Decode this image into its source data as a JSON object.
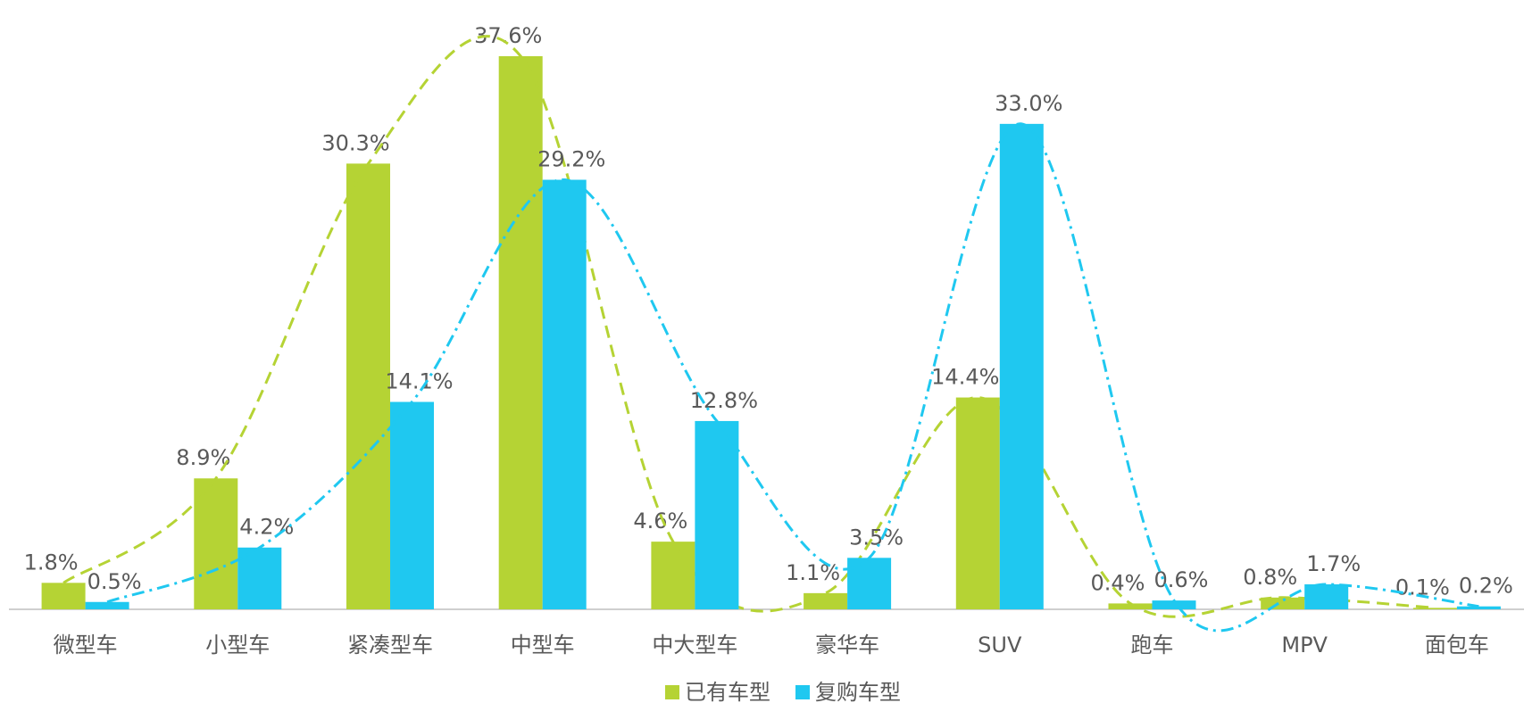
{
  "chart_data": {
    "type": "bar",
    "categories": [
      "微型车",
      "小型车",
      "紧凑型车",
      "中型车",
      "中大型车",
      "豪华车",
      "SUV",
      "跑车",
      "MPV",
      "面包车"
    ],
    "series": [
      {
        "name": "已有车型",
        "color": "#b5d334",
        "values": [
          1.8,
          8.9,
          30.3,
          37.6,
          4.6,
          1.1,
          14.4,
          0.4,
          0.8,
          0.1
        ],
        "value_labels": [
          "1.8%",
          "8.9%",
          "30.3%",
          "37.6%",
          "4.6%",
          "1.1%",
          "14.4%",
          "0.4%",
          "0.8%",
          "0.1%"
        ]
      },
      {
        "name": "复购车型",
        "color": "#1fc8f0",
        "values": [
          0.5,
          4.2,
          14.1,
          29.2,
          12.8,
          3.5,
          33.0,
          0.6,
          1.7,
          0.2
        ],
        "value_labels": [
          "0.5%",
          "4.2%",
          "14.1%",
          "29.2%",
          "12.8%",
          "3.5%",
          "33.0%",
          "0.6%",
          "1.7%",
          "0.2%"
        ]
      }
    ]
  }
}
